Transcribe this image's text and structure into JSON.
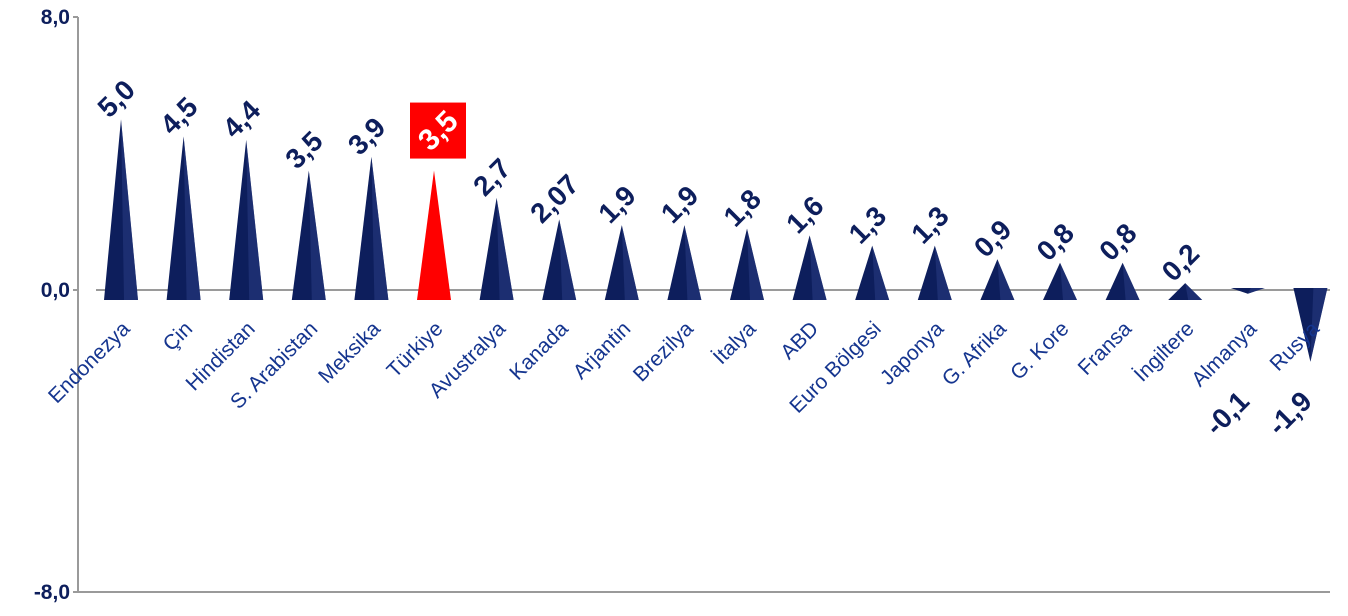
{
  "chart_data": {
    "type": "bar",
    "title": "",
    "xlabel": "",
    "ylabel": "",
    "ylim": [
      -8.0,
      8.0
    ],
    "y_ticks": [
      "8,0",
      "0,0",
      "-8,0"
    ],
    "y_tick_values": [
      8.0,
      0.0,
      -8.0
    ],
    "grid": false,
    "legend": "none",
    "categories": [
      "Endonezya",
      "Çin",
      "Hindistan",
      "S. Arabistan",
      "Meksika",
      "Türkiye",
      "Avustralya",
      "Kanada",
      "Arjantin",
      "Brezilya",
      "İtalya",
      "ABD",
      "Euro Bölgesi",
      "Japonya",
      "G. Afrika",
      "G. Kore",
      "Fransa",
      "İngiltere",
      "Almanya",
      "Rusya"
    ],
    "values": [
      5.0,
      4.5,
      4.4,
      3.5,
      3.9,
      3.5,
      2.7,
      2.07,
      1.9,
      1.9,
      1.8,
      1.6,
      1.3,
      1.3,
      0.9,
      0.8,
      0.8,
      0.2,
      -0.1,
      -1.9
    ],
    "value_labels": [
      "5,0",
      "4,5",
      "4,4",
      "3,5",
      "3,9",
      "3,5",
      "2,7",
      "2,07",
      "1,9",
      "1,9",
      "1,8",
      "1,6",
      "1,3",
      "1,3",
      "0,9",
      "0,8",
      "0,8",
      "0,2",
      "-0,1",
      "-1,9"
    ],
    "highlight_category": "Türkiye",
    "colors": {
      "bar": "#0d1e5c",
      "bar_shade": "#2a3d84",
      "highlight": "#ff0000",
      "label": "#0d1e5c",
      "axis": "#9a9a9a",
      "highlight_label_text": "#ffffff"
    }
  }
}
